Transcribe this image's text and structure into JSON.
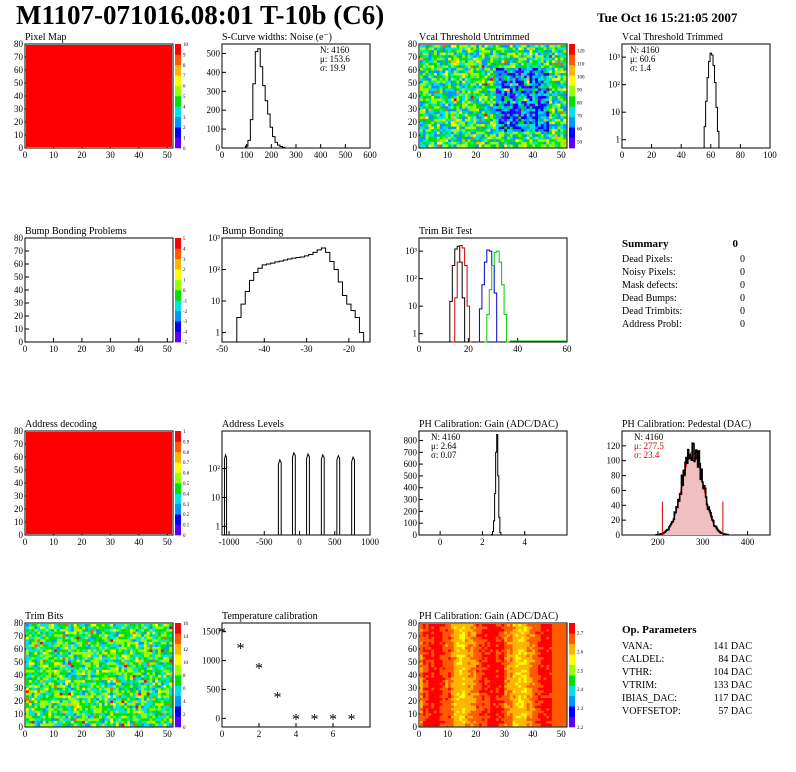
{
  "header": {
    "title": "M1107-071016.08:01 T-10b (C6)",
    "date": "Tue Oct 16 15:21:05 2007"
  },
  "colors": {
    "map_red": "#ff0000",
    "trim_red": "#cc0000",
    "trim_blue": "#0000cc",
    "trim_green": "#00cc00",
    "pedestal_fit": "#cc0000",
    "pedestal_fill": "#f0c0c0",
    "palette": [
      "#5b00ff",
      "#0000ff",
      "#0096ff",
      "#00e1e1",
      "#00e100",
      "#96ff00",
      "#ffff00",
      "#ffb400",
      "#ff5a00",
      "#ff0000"
    ]
  },
  "chart_data": [
    {
      "id": "pixel-map",
      "type": "heatmap",
      "title": "Pixel Map",
      "xlim": [
        0,
        52
      ],
      "ylim": [
        0,
        80
      ],
      "xticks": [
        0,
        10,
        20,
        30,
        40,
        50
      ],
      "yticks": [
        0,
        10,
        20,
        30,
        40,
        50,
        60,
        70,
        80
      ],
      "fill": "uniform-red",
      "zlim": [
        0,
        10
      ],
      "zticks": [
        0,
        1,
        2,
        3,
        4,
        5,
        6,
        7,
        8,
        9,
        10
      ]
    },
    {
      "id": "scurve-widths",
      "type": "histogram",
      "title": "S-Curve widths: Noise (e⁻)",
      "xlim": [
        0,
        600
      ],
      "ylim": [
        0,
        550
      ],
      "xticks": [
        0,
        100,
        200,
        300,
        400,
        500,
        600
      ],
      "yticks": [
        0,
        100,
        200,
        300,
        400,
        500
      ],
      "stats": [
        "N: 4160",
        "μ: 153.6",
        "σ: 19.9"
      ],
      "x": [
        90,
        100,
        110,
        120,
        130,
        140,
        150,
        160,
        170,
        180,
        190,
        200,
        210,
        220,
        230,
        240,
        250,
        260
      ],
      "values": [
        0,
        10,
        40,
        150,
        340,
        510,
        525,
        430,
        330,
        250,
        180,
        110,
        60,
        30,
        15,
        8,
        3,
        0
      ]
    },
    {
      "id": "vcal-untrimmed",
      "type": "heatmap",
      "title": "Vcal Threshold Untrimmed",
      "xlim": [
        0,
        52
      ],
      "ylim": [
        0,
        80
      ],
      "xticks": [
        0,
        10,
        20,
        30,
        40,
        50
      ],
      "yticks": [
        0,
        10,
        20,
        30,
        40,
        50,
        60,
        70,
        80
      ],
      "fill": "noise-green-blue",
      "zlim": [
        45,
        125
      ],
      "zticks": [
        50,
        60,
        70,
        80,
        90,
        100,
        110,
        120
      ]
    },
    {
      "id": "vcal-trimmed",
      "type": "histogram",
      "title": "Vcal Threshold Trimmed",
      "log": true,
      "xlim": [
        0,
        100
      ],
      "ylim": [
        0.5,
        3000
      ],
      "xticks": [
        0,
        20,
        40,
        60,
        80,
        100
      ],
      "yticks": [
        1,
        10,
        100,
        1000
      ],
      "stats": [
        "N: 4160",
        "μ: 60.6",
        "σ: 1.4"
      ],
      "x": [
        55,
        56,
        57,
        58,
        59,
        60,
        61,
        62,
        63,
        64,
        65,
        66
      ],
      "values": [
        0,
        3,
        25,
        180,
        700,
        1400,
        1200,
        500,
        120,
        15,
        2,
        0
      ]
    },
    {
      "id": "bump-bonding-problems",
      "type": "heatmap",
      "title": "Bump Bonding Problems",
      "xlim": [
        0,
        52
      ],
      "ylim": [
        0,
        80
      ],
      "xticks": [
        0,
        10,
        20,
        30,
        40,
        50
      ],
      "yticks": [
        0,
        10,
        20,
        30,
        40,
        50,
        60,
        70,
        80
      ],
      "fill": "empty",
      "zlim": [
        -5,
        5
      ],
      "zticks": [
        -5,
        -4,
        -3,
        -2,
        -1,
        0,
        1,
        2,
        3,
        4,
        5
      ]
    },
    {
      "id": "bump-bonding",
      "type": "histogram",
      "title": "Bump Bonding",
      "log": true,
      "xlim": [
        -50,
        -15
      ],
      "ylim": [
        0.5,
        1000
      ],
      "xticks": [
        -50,
        -40,
        -30,
        -20
      ],
      "yticks": [
        1,
        10,
        100,
        1000
      ],
      "x": [
        -47,
        -46,
        -45,
        -44,
        -43,
        -42,
        -41,
        -40,
        -39,
        -38,
        -37,
        -36,
        -35,
        -34,
        -33,
        -32,
        -31,
        -30,
        -29,
        -28,
        -27,
        -26,
        -25,
        -24,
        -23,
        -22,
        -21,
        -20,
        -19,
        -18,
        -17,
        -16
      ],
      "values": [
        0.5,
        3,
        8,
        20,
        45,
        80,
        110,
        140,
        150,
        160,
        175,
        185,
        200,
        215,
        230,
        240,
        250,
        270,
        300,
        350,
        420,
        480,
        350,
        180,
        100,
        40,
        15,
        8,
        5,
        3,
        1,
        0.5
      ]
    },
    {
      "id": "trim-bit-test",
      "type": "histogram",
      "title": "Trim Bit Test",
      "log": true,
      "xlim": [
        0,
        60
      ],
      "ylim": [
        0.5,
        3000
      ],
      "xticks": [
        0,
        20,
        40,
        60
      ],
      "yticks": [
        1,
        10,
        100,
        1000
      ],
      "series": [
        {
          "color": "#000000",
          "x": [
            12,
            13,
            14,
            15,
            16,
            17,
            18,
            19
          ],
          "values": [
            0.5,
            15,
            300,
            1200,
            1500,
            400,
            20,
            0.5
          ]
        },
        {
          "color": "#cc0000",
          "x": [
            14,
            15,
            16,
            17,
            18,
            19,
            20,
            21
          ],
          "values": [
            0.5,
            20,
            400,
            1600,
            1300,
            300,
            10,
            0.5
          ]
        },
        {
          "color": "#0000cc",
          "x": [
            24,
            25,
            26,
            27,
            28,
            29,
            30,
            31,
            32
          ],
          "values": [
            0.5,
            8,
            60,
            400,
            1100,
            1000,
            300,
            30,
            0.5
          ]
        },
        {
          "color": "#00cc00",
          "x": [
            27,
            28,
            29,
            30,
            31,
            32,
            33,
            34,
            35,
            36
          ],
          "values": [
            0.5,
            5,
            40,
            300,
            900,
            1000,
            400,
            60,
            5,
            0.5
          ]
        }
      ]
    },
    {
      "id": "address-decoding",
      "type": "heatmap",
      "title": "Address decoding",
      "xlim": [
        0,
        52
      ],
      "ylim": [
        0,
        80
      ],
      "xticks": [
        0,
        10,
        20,
        30,
        40,
        50
      ],
      "yticks": [
        0,
        10,
        20,
        30,
        40,
        50,
        60,
        70,
        80
      ],
      "fill": "uniform-red",
      "zlim": [
        0,
        1
      ],
      "zticks": [
        0,
        0.1,
        0.2,
        0.3,
        0.4,
        0.5,
        0.6,
        0.7,
        0.8,
        0.9,
        1
      ]
    },
    {
      "id": "address-levels",
      "type": "histogram",
      "title": "Address Levels",
      "log": true,
      "xlim": [
        -1100,
        1000
      ],
      "ylim": [
        0.5,
        2000
      ],
      "xticks": [
        -1000,
        -500,
        0,
        500,
        1000
      ],
      "yticks": [
        1,
        10,
        100
      ],
      "peaks": [
        {
          "x": -1050,
          "width": 30,
          "height": 300
        },
        {
          "x": -280,
          "width": 40,
          "height": 200
        },
        {
          "x": -80,
          "width": 40,
          "height": 350
        },
        {
          "x": 120,
          "width": 40,
          "height": 320
        },
        {
          "x": 330,
          "width": 40,
          "height": 300
        },
        {
          "x": 550,
          "width": 40,
          "height": 280
        },
        {
          "x": 760,
          "width": 40,
          "height": 250
        }
      ]
    },
    {
      "id": "ph-gain",
      "type": "histogram",
      "title": "PH Calibration: Gain (ADC/DAC)",
      "xlim": [
        -1,
        6
      ],
      "ylim": [
        0,
        880
      ],
      "xticks": [
        0,
        2,
        4
      ],
      "yticks": [
        0,
        100,
        200,
        300,
        400,
        500,
        600,
        700,
        800
      ],
      "stats": [
        "N: 4160",
        "μ: 2.64",
        "σ: 0.07"
      ],
      "x": [
        2.4,
        2.45,
        2.5,
        2.55,
        2.6,
        2.65,
        2.7,
        2.75,
        2.8,
        2.85,
        2.9
      ],
      "values": [
        0,
        5,
        30,
        120,
        350,
        700,
        850,
        500,
        150,
        20,
        0
      ]
    },
    {
      "id": "ph-pedestal",
      "type": "histogram",
      "title": "PH Calibration: Pedestal (DAC)",
      "xlim": [
        120,
        450
      ],
      "ylim": [
        0,
        140
      ],
      "xticks": [
        200,
        300,
        400
      ],
      "yticks": [
        0,
        20,
        40,
        60,
        80,
        100,
        120
      ],
      "stats": [
        "N: 4160",
        "μ: 277.5",
        "σ: 23.4"
      ],
      "mean": 277.5,
      "sigma": 23.4,
      "peak": 118,
      "fit_lines": [
        210,
        345
      ]
    },
    {
      "id": "trim-bits",
      "type": "heatmap",
      "title": "Trim Bits",
      "xlim": [
        0,
        52
      ],
      "ylim": [
        0,
        80
      ],
      "xticks": [
        0,
        10,
        20,
        30,
        40,
        50
      ],
      "yticks": [
        0,
        10,
        20,
        30,
        40,
        50,
        60,
        70,
        80
      ],
      "fill": "noise-green",
      "zlim": [
        0,
        16
      ],
      "zticks": [
        0,
        2,
        4,
        6,
        8,
        10,
        12,
        14,
        16
      ]
    },
    {
      "id": "temperature-calibration",
      "type": "scatter",
      "title": "Temperature calibration",
      "xlim": [
        0,
        8
      ],
      "ylim": [
        -150,
        1650
      ],
      "xticks": [
        0,
        2,
        4,
        6
      ],
      "yticks": [
        0,
        500,
        1000,
        1500
      ],
      "x": [
        0,
        1,
        2,
        3,
        4,
        5,
        6,
        7
      ],
      "values": [
        1500,
        1230,
        880,
        380,
        0,
        0,
        0,
        0
      ]
    },
    {
      "id": "ph-gain-map",
      "type": "heatmap",
      "title": "PH Calibration: Gain (ADC/DAC)",
      "xlim": [
        0,
        52
      ],
      "ylim": [
        0,
        80
      ],
      "xticks": [
        0,
        10,
        20,
        30,
        40,
        50
      ],
      "yticks": [
        0,
        10,
        20,
        30,
        40,
        50,
        60,
        70,
        80
      ],
      "fill": "columns-red-yellow",
      "zlim": [
        2.2,
        2.75
      ],
      "zticks": [
        2.2,
        2.3,
        2.4,
        2.5,
        2.6,
        2.7
      ]
    }
  ],
  "summary": {
    "title": "Summary",
    "total": "0",
    "rows": [
      {
        "label": "Dead Pixels:",
        "value": "0"
      },
      {
        "label": "Noisy Pixels:",
        "value": "0"
      },
      {
        "label": "Mask defects:",
        "value": "0"
      },
      {
        "label": "Dead Bumps:",
        "value": "0"
      },
      {
        "label": "Dead Trimbits:",
        "value": "0"
      },
      {
        "label": "Address Probl:",
        "value": "0"
      }
    ]
  },
  "op_parameters": {
    "title": "Op. Parameters",
    "rows": [
      {
        "label": "VANA:",
        "value": "141 DAC"
      },
      {
        "label": "CALDEL:",
        "value": "84 DAC"
      },
      {
        "label": "VTHR:",
        "value": "104 DAC"
      },
      {
        "label": "VTRIM:",
        "value": "133 DAC"
      },
      {
        "label": "IBIAS_DAC:",
        "value": "117 DAC"
      },
      {
        "label": "VOFFSETOP:",
        "value": "57 DAC"
      }
    ]
  }
}
